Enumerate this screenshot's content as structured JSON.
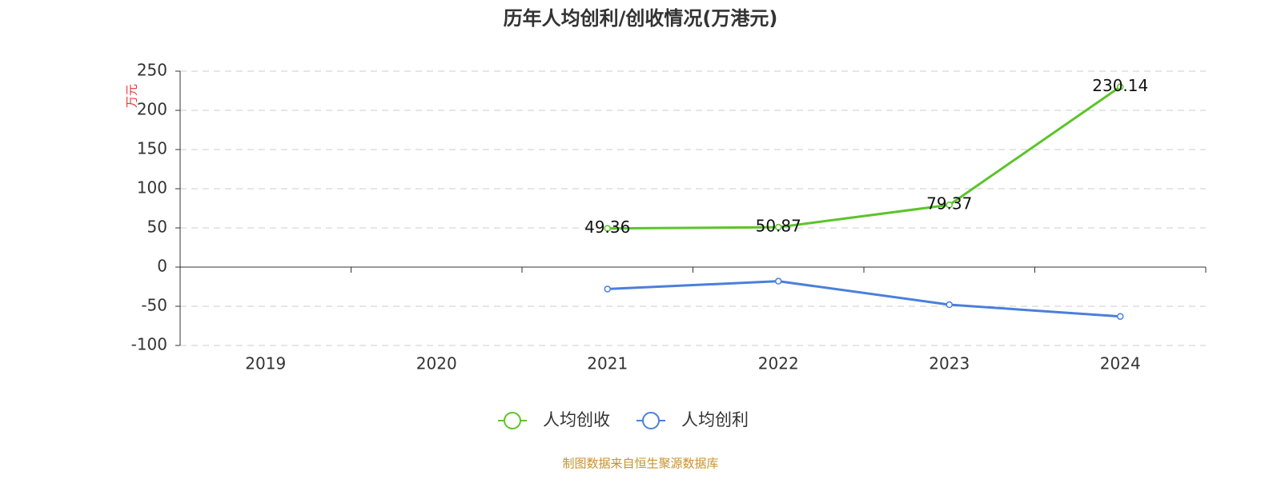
{
  "chart_data": {
    "type": "line",
    "title": "历年人均创利/创收情况(万港元)",
    "y_label": "万元",
    "categories": [
      "2019",
      "2020",
      "2021",
      "2022",
      "2023",
      "2024"
    ],
    "series": [
      {
        "name": "人均创收",
        "color": "#5cc42a",
        "values": [
          null,
          null,
          49.36,
          50.87,
          79.37,
          230.14
        ],
        "data_labels": true
      },
      {
        "name": "人均创利",
        "color": "#4a7fdc",
        "values": [
          null,
          null,
          -28,
          -18,
          -48,
          -63
        ],
        "data_labels": false
      }
    ],
    "ylim": [
      -100,
      250
    ],
    "yticks": [
      -100,
      -50,
      0,
      50,
      100,
      150,
      200,
      250
    ],
    "grid": true,
    "legend": "bottom",
    "source": "制图数据来自恒生聚源数据库"
  }
}
